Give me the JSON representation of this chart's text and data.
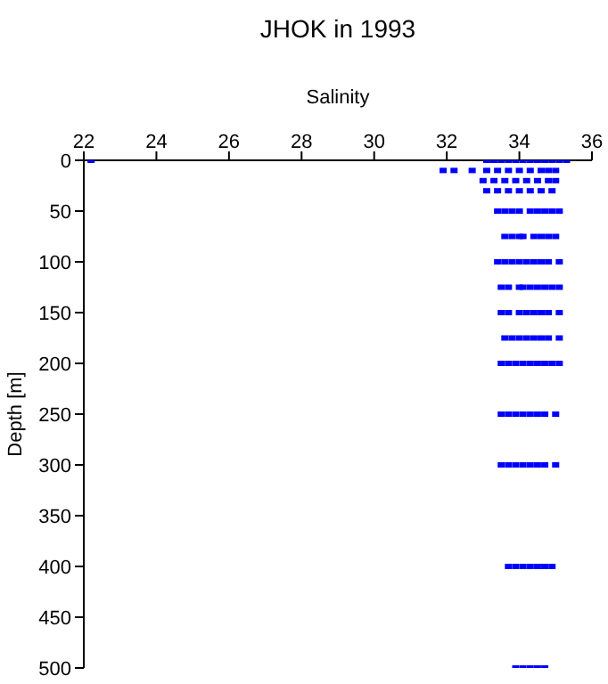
{
  "chart_data": {
    "type": "scatter",
    "title": "JHOK in 1993",
    "xlabel": "Salinity",
    "ylabel": "Depth [m]",
    "xlim": [
      22,
      36
    ],
    "xticks": [
      22,
      24,
      26,
      28,
      30,
      32,
      34,
      36
    ],
    "ylim": [
      500,
      0
    ],
    "yticks": [
      0,
      50,
      100,
      150,
      200,
      250,
      300,
      350,
      400,
      450,
      500
    ],
    "grid": false,
    "marker": "square",
    "series": [
      {
        "color": "#0000ff",
        "x": [
          22.2,
          33.1,
          33.3,
          33.5,
          33.7,
          33.9,
          34.1,
          34.3,
          34.5,
          34.7,
          34.9,
          35.1,
          35.3,
          31.9,
          32.2,
          32.7,
          33.1,
          33.4,
          33.7,
          34.0,
          34.3,
          34.6,
          34.8,
          35.0,
          33.0,
          33.3,
          33.6,
          33.9,
          34.2,
          34.5,
          34.8,
          35.0,
          33.1,
          33.4,
          33.7,
          34.0,
          34.3,
          34.6,
          34.9,
          33.4,
          33.6,
          33.8,
          34.0,
          34.3,
          34.5,
          34.7,
          34.9,
          35.1,
          33.6,
          33.8,
          34.0,
          34.1,
          34.4,
          34.6,
          34.8,
          35.0,
          33.4,
          33.6,
          33.8,
          34.0,
          34.2,
          34.4,
          34.6,
          34.8,
          35.1,
          33.5,
          33.7,
          34.0,
          34.1,
          34.3,
          34.5,
          34.7,
          34.9,
          35.1,
          33.5,
          33.7,
          34.0,
          34.2,
          34.4,
          34.6,
          34.8,
          35.1,
          33.6,
          33.8,
          34.0,
          34.2,
          34.4,
          34.6,
          34.8,
          35.1,
          33.5,
          33.7,
          33.9,
          34.1,
          34.3,
          34.5,
          34.7,
          34.9,
          35.1,
          33.5,
          33.7,
          33.9,
          34.1,
          34.3,
          34.5,
          34.7,
          35.0,
          33.5,
          33.7,
          33.9,
          34.1,
          34.3,
          34.5,
          34.7,
          35.0,
          33.7,
          33.9,
          34.1,
          34.3,
          34.5,
          34.7,
          34.9,
          33.9,
          34.1,
          34.3,
          34.5,
          34.7
        ],
        "values": [
          0,
          0,
          0,
          0,
          0,
          0,
          0,
          0,
          0,
          0,
          0,
          0,
          0,
          10,
          10,
          10,
          10,
          10,
          10,
          10,
          10,
          10,
          10,
          10,
          20,
          20,
          20,
          20,
          20,
          20,
          20,
          20,
          30,
          30,
          30,
          30,
          30,
          30,
          30,
          50,
          50,
          50,
          50,
          50,
          50,
          50,
          50,
          50,
          75,
          75,
          75,
          75,
          75,
          75,
          75,
          75,
          100,
          100,
          100,
          100,
          100,
          100,
          100,
          100,
          100,
          125,
          125,
          125,
          125,
          125,
          125,
          125,
          125,
          125,
          150,
          150,
          150,
          150,
          150,
          150,
          150,
          150,
          175,
          175,
          175,
          175,
          175,
          175,
          175,
          175,
          200,
          200,
          200,
          200,
          200,
          200,
          200,
          200,
          200,
          250,
          250,
          250,
          250,
          250,
          250,
          250,
          250,
          300,
          300,
          300,
          300,
          300,
          300,
          300,
          300,
          400,
          400,
          400,
          400,
          400,
          400,
          400,
          500,
          500,
          500,
          500,
          500
        ]
      }
    ]
  }
}
